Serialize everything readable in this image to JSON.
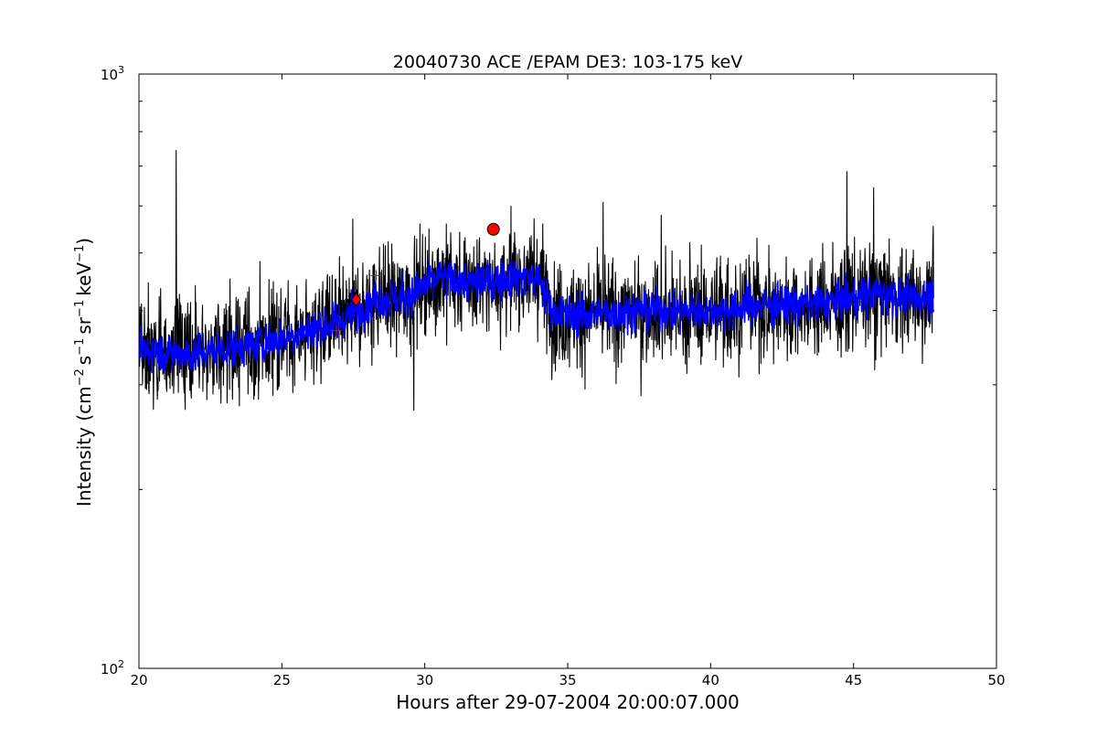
{
  "chart_data": {
    "type": "line",
    "title": "20040730 ACE /EPAM DE3: 103-175 keV",
    "xlabel": "Hours after 29-07-2004 20:00:07.000",
    "ylabel": "Intensity (cm^-2 s^-1 sr^-1 keV^-1)",
    "ylabel_parts": {
      "prefix": "Intensity (cm",
      "exp1": "−2",
      "mid1": "s",
      "exp2": "−1",
      "mid2": "sr",
      "exp3": "−1",
      "mid3": "keV",
      "exp4": "−1",
      "suffix": ")"
    },
    "xlim": [
      20,
      50
    ],
    "ylim": [
      100,
      1000
    ],
    "yscale": "log",
    "grid": false,
    "x_ticks": [
      {
        "value": 20,
        "label": "20"
      },
      {
        "value": 25,
        "label": "25"
      },
      {
        "value": 30,
        "label": "30"
      },
      {
        "value": 35,
        "label": "35"
      },
      {
        "value": 40,
        "label": "40"
      },
      {
        "value": 45,
        "label": "45"
      },
      {
        "value": 50,
        "label": "50"
      }
    ],
    "y_ticks": [
      {
        "value": 100,
        "base": "10",
        "exp": "2"
      },
      {
        "value": 1000,
        "base": "10",
        "exp": "3"
      }
    ],
    "y_minor_ticks": [
      200,
      300,
      400,
      500,
      600,
      700,
      800,
      900
    ],
    "series": [
      {
        "role": "raw",
        "color": "#000000",
        "x": [
          20.0,
          21.0,
          22.0,
          23.0,
          24.0,
          25.0,
          26.0,
          27.0,
          27.5,
          28.0,
          28.5,
          29.0,
          29.5,
          30.0,
          30.5,
          31.0,
          31.5,
          32.0,
          32.5,
          33.0,
          33.5,
          34.0,
          34.5,
          35.0,
          36.0,
          37.0,
          38.0,
          39.0,
          40.0,
          41.0,
          42.0,
          43.0,
          44.0,
          45.0,
          46.0,
          47.0,
          47.8
        ],
        "y": [
          345,
          340,
          338,
          345,
          350,
          360,
          372,
          382,
          395,
          412,
          420,
          418,
          425,
          440,
          455,
          450,
          445,
          448,
          450,
          455,
          458,
          452,
          398,
          392,
          395,
          398,
          402,
          400,
          398,
          405,
          410,
          408,
          412,
          420,
          430,
          418,
          428
        ]
      },
      {
        "role": "smoothed",
        "color": "#0000ff",
        "x": [
          20.0,
          21.0,
          22.0,
          23.0,
          24.0,
          25.0,
          26.0,
          27.0,
          27.5,
          28.0,
          28.5,
          29.0,
          29.5,
          30.0,
          30.5,
          31.0,
          31.5,
          32.0,
          32.5,
          33.0,
          33.5,
          34.0,
          34.5,
          35.0,
          36.0,
          37.0,
          38.0,
          39.0,
          40.0,
          41.0,
          42.0,
          43.0,
          44.0,
          45.0,
          46.0,
          47.0,
          47.8
        ],
        "y": [
          345,
          340,
          338,
          345,
          350,
          360,
          372,
          382,
          395,
          412,
          420,
          418,
          425,
          440,
          455,
          450,
          445,
          448,
          450,
          455,
          458,
          452,
          398,
          392,
          395,
          398,
          402,
          400,
          398,
          405,
          410,
          408,
          412,
          420,
          430,
          418,
          428
        ]
      }
    ],
    "markers": [
      {
        "type": "circle",
        "x": 32.4,
        "y": 548,
        "color": "#ff0000"
      },
      {
        "type": "diamond",
        "x": 27.6,
        "y": 417,
        "color": "#ff0000"
      },
      {
        "type": "plus",
        "x": 26.9,
        "y": 370,
        "color": "#ff0000"
      },
      {
        "type": "plus",
        "x": 28.3,
        "y": 458,
        "color": "#ff0000"
      }
    ]
  }
}
